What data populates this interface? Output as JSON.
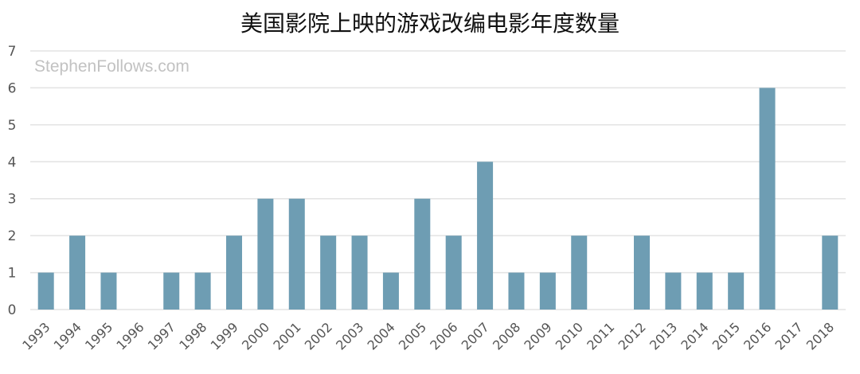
{
  "chart_data": {
    "type": "bar",
    "title": "美国影院上映的游戏改编电影年度数量",
    "watermark": "StephenFollows.com",
    "categories": [
      "1993",
      "1994",
      "1995",
      "1996",
      "1997",
      "1998",
      "1999",
      "2000",
      "2001",
      "2002",
      "2003",
      "2004",
      "2005",
      "2006",
      "2007",
      "2008",
      "2009",
      "2010",
      "2011",
      "2012",
      "2013",
      "2014",
      "2015",
      "2016",
      "2017",
      "2018"
    ],
    "values": [
      1,
      2,
      1,
      0,
      1,
      1,
      2,
      3,
      3,
      2,
      2,
      1,
      3,
      2,
      4,
      1,
      1,
      2,
      0,
      2,
      1,
      1,
      1,
      6,
      0,
      2
    ],
    "xlabel": "",
    "ylabel": "",
    "ylim": [
      0,
      7
    ],
    "yticks": [
      "0",
      "1",
      "2",
      "3",
      "4",
      "5",
      "6",
      "7"
    ],
    "grid": true,
    "bar_color": "#6e9db3",
    "grid_color": "#e3e3e3"
  }
}
